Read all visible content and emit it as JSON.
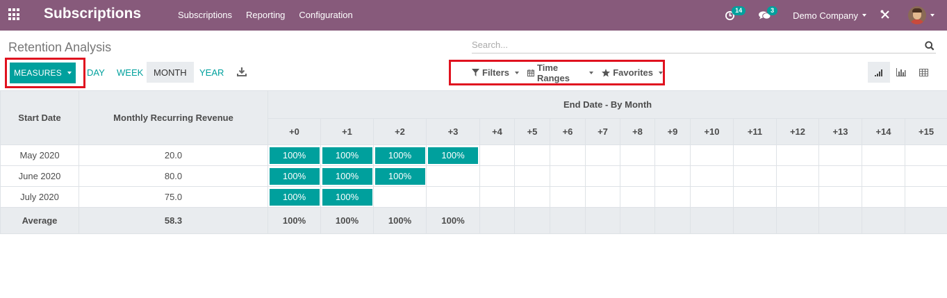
{
  "navbar": {
    "app_title": "Subscriptions",
    "menu": [
      "Subscriptions",
      "Reporting",
      "Configuration"
    ],
    "activity_count": "14",
    "messages_count": "3",
    "company": "Demo Company",
    "color": "#875a7b"
  },
  "control_panel": {
    "breadcrumb": "Retention Analysis",
    "search_placeholder": "Search...",
    "measures_label": "MEASURES",
    "periods": [
      "DAY",
      "WEEK",
      "MONTH",
      "YEAR"
    ],
    "active_period": "MONTH",
    "filters_label": "Filters",
    "time_ranges_label": "Time Ranges",
    "favorites_label": "Favorites",
    "accent_color": "#00a09d",
    "highlight_color": "#e0121f"
  },
  "cohort": {
    "col_start": "Start Date",
    "col_measure": "Monthly Recurring Revenue",
    "col_group": "End Date - By Month",
    "periods": [
      "+0",
      "+1",
      "+2",
      "+3",
      "+4",
      "+5",
      "+6",
      "+7",
      "+8",
      "+9",
      "+10",
      "+11",
      "+12",
      "+13",
      "+14",
      "+15"
    ],
    "rows": [
      {
        "date": "May 2020",
        "value": "20.0",
        "cells": [
          "100%",
          "100%",
          "100%",
          "100%"
        ]
      },
      {
        "date": "June 2020",
        "value": "80.0",
        "cells": [
          "100%",
          "100%",
          "100%"
        ]
      },
      {
        "date": "July 2020",
        "value": "75.0",
        "cells": [
          "100%",
          "100%"
        ]
      }
    ],
    "average": {
      "label": "Average",
      "value": "58.3",
      "cells": [
        "100%",
        "100%",
        "100%",
        "100%"
      ]
    }
  }
}
